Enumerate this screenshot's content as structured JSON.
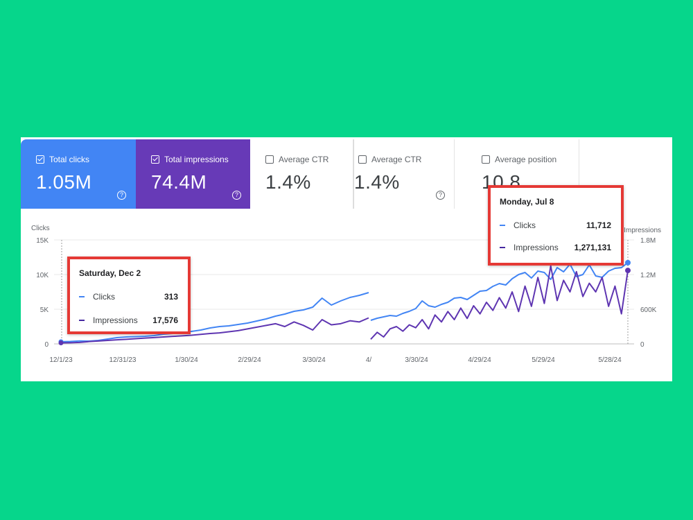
{
  "cards": {
    "total_clicks": {
      "label": "Total clicks",
      "value": "1.05M",
      "help": "?"
    },
    "total_impressions": {
      "label": "Total impressions",
      "value": "74.4M",
      "help": "?"
    },
    "average_ctr_1": {
      "label": "Average CTR",
      "value": "1.4%",
      "help": "?"
    },
    "average_ctr_2": {
      "label": "Average CTR",
      "value": "1.4%",
      "help": "?"
    },
    "average_position": {
      "label": "Average position",
      "value": "10.8"
    }
  },
  "tooltips": {
    "left": {
      "title": "Saturday, Dec 2",
      "clicks_label": "Clicks",
      "clicks_value": "313",
      "impressions_label": "Impressions",
      "impressions_value": "17,576"
    },
    "right": {
      "title": "Monday, Jul 8",
      "clicks_label": "Clicks",
      "clicks_value": "11,712",
      "impressions_label": "Impressions",
      "impressions_value": "1,271,131"
    }
  },
  "colors": {
    "clicks": "#4285f4",
    "impressions": "#5e35b1",
    "highlight": "#e53935",
    "background": "#06d68b"
  },
  "chart_data": [
    {
      "type": "line",
      "ylabel_left": "Clicks",
      "ylabel_right": "Impressions",
      "y_left_ticks": [
        "15K",
        "10K",
        "5K",
        "0"
      ],
      "y_left_range": [
        0,
        15000
      ],
      "y_right_ticks": [
        "1.8M",
        "1.2M",
        "600K",
        "0"
      ],
      "y_right_range": [
        0,
        1800000
      ],
      "x_ticks": [
        "12/1/23",
        "12/31/23",
        "1/30/24",
        "2/29/24",
        "3/30/24",
        "4/"
      ],
      "grid": true,
      "series": [
        {
          "name": "Clicks",
          "values": [
            313,
            350,
            420,
            400,
            500,
            700,
            900,
            1000,
            1050,
            1100,
            1200,
            1400,
            1500,
            1700,
            1800,
            2000,
            2300,
            2500,
            2600,
            2800,
            3000,
            3300,
            3600,
            4000,
            4300,
            4700,
            4900,
            5300,
            6600,
            5600,
            6200,
            6700,
            7000,
            7400
          ]
        },
        {
          "name": "Impressions",
          "values": [
            17576,
            20000,
            25000,
            40000,
            50000,
            60000,
            70000,
            80000,
            90000,
            100000,
            110000,
            120000,
            130000,
            140000,
            150000,
            165000,
            180000,
            190000,
            210000,
            230000,
            260000,
            290000,
            320000,
            350000,
            300000,
            380000,
            320000,
            240000,
            420000,
            330000,
            350000,
            400000,
            380000,
            450000
          ]
        }
      ]
    },
    {
      "type": "line",
      "x_ticks": [
        "3/30/24",
        "4/29/24",
        "5/29/24",
        "5/28/24"
      ],
      "series": [
        {
          "name": "Clicks",
          "values": [
            3400,
            3700,
            3900,
            4100,
            4000,
            4400,
            4700,
            5100,
            6200,
            5500,
            5300,
            5700,
            6000,
            6600,
            6700,
            6400,
            7000,
            7600,
            7700,
            8300,
            8700,
            8500,
            9400,
            10000,
            10300,
            9500,
            10500,
            10300,
            9300,
            11000,
            10400,
            11500,
            9700,
            10000,
            11400,
            9800,
            9600,
            10500,
            10900,
            11000,
            11712
          ]
        },
        {
          "name": "Impressions",
          "values": [
            80000,
            200000,
            120000,
            260000,
            300000,
            220000,
            330000,
            280000,
            420000,
            260000,
            500000,
            380000,
            560000,
            420000,
            620000,
            440000,
            660000,
            520000,
            720000,
            580000,
            800000,
            620000,
            900000,
            560000,
            1000000,
            650000,
            1150000,
            700000,
            1350000,
            750000,
            1100000,
            900000,
            1250000,
            820000,
            1050000,
            900000,
            1150000,
            650000,
            1000000,
            520000,
            1271131
          ]
        }
      ]
    }
  ]
}
